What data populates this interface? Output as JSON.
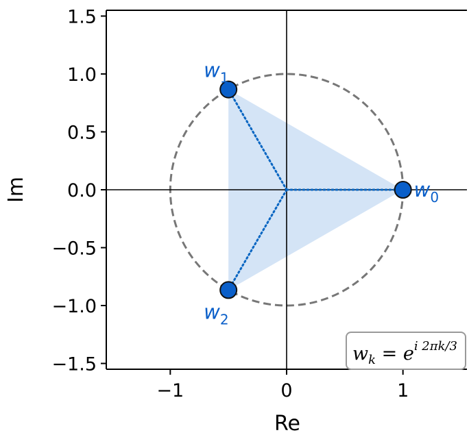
{
  "chart_data": {
    "type": "scatter",
    "xlabel": "Re",
    "ylabel": "Im",
    "xlim": [
      -1.55,
      1.55
    ],
    "ylim": [
      -1.55,
      1.55
    ],
    "xticks": [
      -1,
      0,
      1
    ],
    "xtick_labels": [
      "−1",
      "0",
      "1"
    ],
    "yticks": [
      -1.5,
      -1.0,
      -0.5,
      0.0,
      0.5,
      1.0,
      1.5
    ],
    "ytick_labels": [
      "−1.5",
      "−1.0",
      "−0.5",
      "0.0",
      "0.5",
      "1.0",
      "1.5"
    ],
    "grid": false,
    "unit_circle": {
      "radius": 1,
      "style": "dashed",
      "color": "#777777"
    },
    "triangle_fill_color": "#d4e4f6",
    "spoke_color": "#0a66c2",
    "point_color": "#0a5fc9",
    "label_color": "#0a5fc9",
    "points": [
      {
        "label": "w",
        "sub": "0",
        "x": 1.0,
        "y": 0.0
      },
      {
        "label": "w",
        "sub": "1",
        "x": -0.5,
        "y": 0.866
      },
      {
        "label": "w",
        "sub": "2",
        "x": -0.5,
        "y": -0.866
      }
    ],
    "annotation": {
      "base": "w",
      "sub": "k",
      "eq": " = e",
      "sup": "i 2πk/3",
      "placement": "bottom-right"
    }
  }
}
